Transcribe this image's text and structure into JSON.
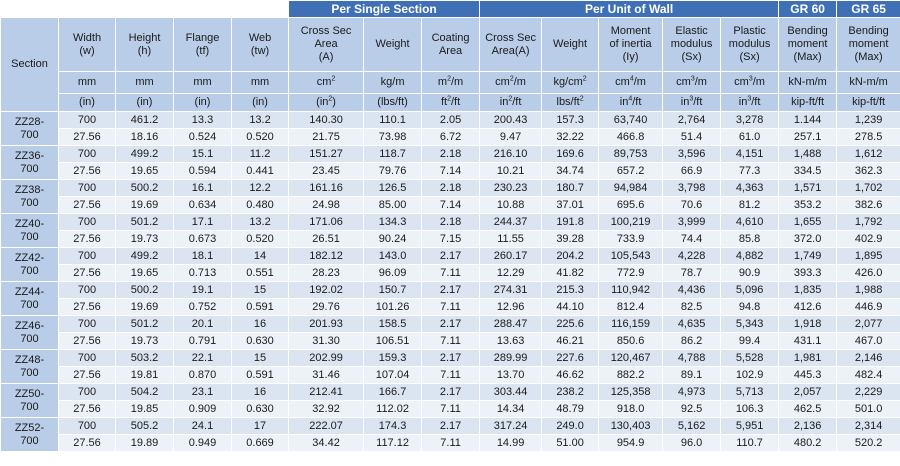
{
  "group_headers": {
    "per_single_section": "Per Single Section",
    "per_unit_of_wall": "Per Unit of Wall",
    "gr60": "GR 60",
    "gr65": "GR 65"
  },
  "section_header": "Section",
  "columns": [
    {
      "key": "w",
      "title": [
        "Width",
        "(w)"
      ],
      "unit": "mm",
      "unit_sup": "",
      "unit_in": "(in)",
      "unit_in_sup": "",
      "unit_in_after": ""
    },
    {
      "key": "h",
      "title": [
        "Height",
        "(h)"
      ],
      "unit": "mm",
      "unit_sup": "",
      "unit_in": "(in)",
      "unit_in_sup": "",
      "unit_in_after": ""
    },
    {
      "key": "tf",
      "title": [
        "Flange",
        "(tf)"
      ],
      "unit": "mm",
      "unit_sup": "",
      "unit_in": "(in)",
      "unit_in_sup": "",
      "unit_in_after": ""
    },
    {
      "key": "tw",
      "title": [
        "Web",
        "(tw)"
      ],
      "unit": "mm",
      "unit_sup": "",
      "unit_in": "(in)",
      "unit_in_sup": "",
      "unit_in_after": ""
    },
    {
      "key": "area",
      "title": [
        "Cross Sec",
        "Area",
        "(A)"
      ],
      "unit": "cm",
      "unit_sup": "2",
      "unit_in": "(in",
      "unit_in_sup": "2",
      "unit_in_after": ")"
    },
    {
      "key": "weight",
      "title": [
        "Weight"
      ],
      "unit": "kg/m",
      "unit_sup": "",
      "unit_in": "(lbs/ft)",
      "unit_in_sup": "",
      "unit_in_after": ""
    },
    {
      "key": "coating",
      "title": [
        "Coating",
        "Area"
      ],
      "unit": "m",
      "unit_sup": "2",
      "unit_after": "/m",
      "unit_in": "ft",
      "unit_in_sup": "2",
      "unit_in_after": "/ft"
    },
    {
      "key": "area_w",
      "title": [
        "Cross Sec",
        "Area(A)"
      ],
      "unit": "cm",
      "unit_sup": "2",
      "unit_after": "/m",
      "unit_in": "in",
      "unit_in_sup": "2",
      "unit_in_after": "/ft"
    },
    {
      "key": "weight_w",
      "title": [
        "Weight"
      ],
      "unit": "kg/cm",
      "unit_sup": "2",
      "unit_in": "lbs/ft",
      "unit_in_sup": "2",
      "unit_in_after": ""
    },
    {
      "key": "iy",
      "title": [
        "Moment",
        "of inertia",
        "(Iy)"
      ],
      "unit": "cm",
      "unit_sup": "4",
      "unit_after": "/m",
      "unit_in": "in",
      "unit_in_sup": "4",
      "unit_in_after": "/ft"
    },
    {
      "key": "sx",
      "title": [
        "Elastic",
        "modulus",
        "(Sx)"
      ],
      "unit": "cm",
      "unit_sup": "3",
      "unit_after": "/m",
      "unit_in": "in",
      "unit_in_sup": "3",
      "unit_in_after": "/ft"
    },
    {
      "key": "zx",
      "title": [
        "Plastic",
        "modulus",
        "(Sx)"
      ],
      "unit": "cm",
      "unit_sup": "3",
      "unit_after": "/m",
      "unit_in": "in",
      "unit_in_sup": "3",
      "unit_in_after": "/ft"
    },
    {
      "key": "m60",
      "title": [
        "Bending",
        "moment",
        "(Max)"
      ],
      "unit": "kN-m/m",
      "unit_sup": "",
      "unit_in": "kip-ft/ft",
      "unit_in_sup": "",
      "unit_in_after": ""
    },
    {
      "key": "m65",
      "title": [
        "Bending",
        "moment",
        "(Max)"
      ],
      "unit": "kN-m/m",
      "unit_sup": "",
      "unit_in": "kip-ft/ft",
      "unit_in_sup": "",
      "unit_in_after": ""
    }
  ],
  "sections": [
    {
      "name": [
        "ZZ28-",
        "700"
      ],
      "metric": [
        "700",
        "461.2",
        "13.3",
        "13.2",
        "140.30",
        "110.1",
        "2.05",
        "200.43",
        "157.3",
        "63,740",
        "2,764",
        "3,278",
        "1.144",
        "1,239"
      ],
      "imperial": [
        "27.56",
        "18.16",
        "0.524",
        "0.520",
        "21.75",
        "73.98",
        "6.72",
        "9.47",
        "32.22",
        "466.8",
        "51.4",
        "61.0",
        "257.1",
        "278.5"
      ]
    },
    {
      "name": [
        "ZZ36-",
        "700"
      ],
      "metric": [
        "700",
        "499.2",
        "15.1",
        "11.2",
        "151.27",
        "118.7",
        "2.18",
        "216.10",
        "169.6",
        "89,753",
        "3,596",
        "4,151",
        "1,488",
        "1,612"
      ],
      "imperial": [
        "27.56",
        "19.65",
        "0.594",
        "0.441",
        "23.45",
        "79.76",
        "7.14",
        "10.21",
        "34.74",
        "657.2",
        "66.9",
        "77.3",
        "334.5",
        "362.3"
      ]
    },
    {
      "name": [
        "ZZ38-",
        "700"
      ],
      "metric": [
        "700",
        "500.2",
        "16.1",
        "12.2",
        "161.16",
        "126.5",
        "2.18",
        "230.23",
        "180.7",
        "94,984",
        "3,798",
        "4,363",
        "1,571",
        "1,702"
      ],
      "imperial": [
        "27.56",
        "19.69",
        "0.634",
        "0.480",
        "24.98",
        "85.00",
        "7.14",
        "10.88",
        "37.01",
        "695.6",
        "70.6",
        "81.2",
        "353.2",
        "382.6"
      ]
    },
    {
      "name": [
        "ZZ40-",
        "700"
      ],
      "metric": [
        "700",
        "501.2",
        "17.1",
        "13.2",
        "171.06",
        "134.3",
        "2.18",
        "244.37",
        "191.8",
        "100,219",
        "3,999",
        "4,610",
        "1,655",
        "1,792"
      ],
      "imperial": [
        "27.56",
        "19.73",
        "0.673",
        "0.520",
        "26.51",
        "90.24",
        "7.15",
        "11.55",
        "39.28",
        "733.9",
        "74.4",
        "85.8",
        "372.0",
        "402.9"
      ]
    },
    {
      "name": [
        "ZZ42-",
        "700"
      ],
      "metric": [
        "700",
        "499.2",
        "18.1",
        "14",
        "182.12",
        "143.0",
        "2.17",
        "260.17",
        "204.2",
        "105,543",
        "4,228",
        "4,882",
        "1,749",
        "1,895"
      ],
      "imperial": [
        "27.56",
        "19.65",
        "0.713",
        "0.551",
        "28.23",
        "96.09",
        "7.11",
        "12.29",
        "41.82",
        "772.9",
        "78.7",
        "90.9",
        "393.3",
        "426.0"
      ]
    },
    {
      "name": [
        "ZZ44-",
        "700"
      ],
      "metric": [
        "700",
        "500.2",
        "19.1",
        "15",
        "192.02",
        "150.7",
        "2.17",
        "274.31",
        "215.3",
        "110,942",
        "4,436",
        "5,096",
        "1,835",
        "1,988"
      ],
      "imperial": [
        "27.56",
        "19.69",
        "0.752",
        "0.591",
        "29.76",
        "101.26",
        "7.11",
        "12.96",
        "44.10",
        "812.4",
        "82.5",
        "94.8",
        "412.6",
        "446.9"
      ]
    },
    {
      "name": [
        "ZZ46-",
        "700"
      ],
      "metric": [
        "700",
        "501.2",
        "20.1",
        "16",
        "201.93",
        "158.5",
        "2.17",
        "288.47",
        "225.6",
        "116,159",
        "4,635",
        "5,343",
        "1,918",
        "2,077"
      ],
      "imperial": [
        "27.56",
        "19.73",
        "0.791",
        "0.630",
        "31.30",
        "106.51",
        "7.11",
        "13.63",
        "46.21",
        "850.6",
        "86.2",
        "99.4",
        "431.1",
        "467.0"
      ]
    },
    {
      "name": [
        "ZZ48-",
        "700"
      ],
      "metric": [
        "700",
        "503.2",
        "22.1",
        "15",
        "202.99",
        "159.3",
        "2.17",
        "289.99",
        "227.6",
        "120,467",
        "4,788",
        "5,528",
        "1,981",
        "2,146"
      ],
      "imperial": [
        "27.56",
        "19.81",
        "0.870",
        "0.591",
        "31.46",
        "107.04",
        "7.11",
        "13.70",
        "46.62",
        "882.2",
        "89.1",
        "102.9",
        "445.3",
        "482.4"
      ]
    },
    {
      "name": [
        "ZZ50-",
        "700"
      ],
      "metric": [
        "700",
        "504.2",
        "23.1",
        "16",
        "212.41",
        "166.7",
        "2.17",
        "303.44",
        "238.2",
        "125,358",
        "4,973",
        "5,713",
        "2,057",
        "2,229"
      ],
      "imperial": [
        "27.56",
        "19.85",
        "0.909",
        "0.630",
        "32.92",
        "112.02",
        "7.11",
        "14.34",
        "48.79",
        "918.0",
        "92.5",
        "106.3",
        "462.5",
        "501.0"
      ]
    },
    {
      "name": [
        "ZZ52-",
        "700"
      ],
      "metric": [
        "700",
        "505.2",
        "24.1",
        "17",
        "222.07",
        "174.3",
        "2.17",
        "317.24",
        "249.0",
        "130,403",
        "5,162",
        "5,951",
        "2,136",
        "2,314"
      ],
      "imperial": [
        "27.56",
        "19.89",
        "0.949",
        "0.669",
        "34.42",
        "117.12",
        "7.11",
        "14.99",
        "51.00",
        "954.9",
        "96.0",
        "110.7",
        "480.2",
        "520.2"
      ]
    }
  ]
}
